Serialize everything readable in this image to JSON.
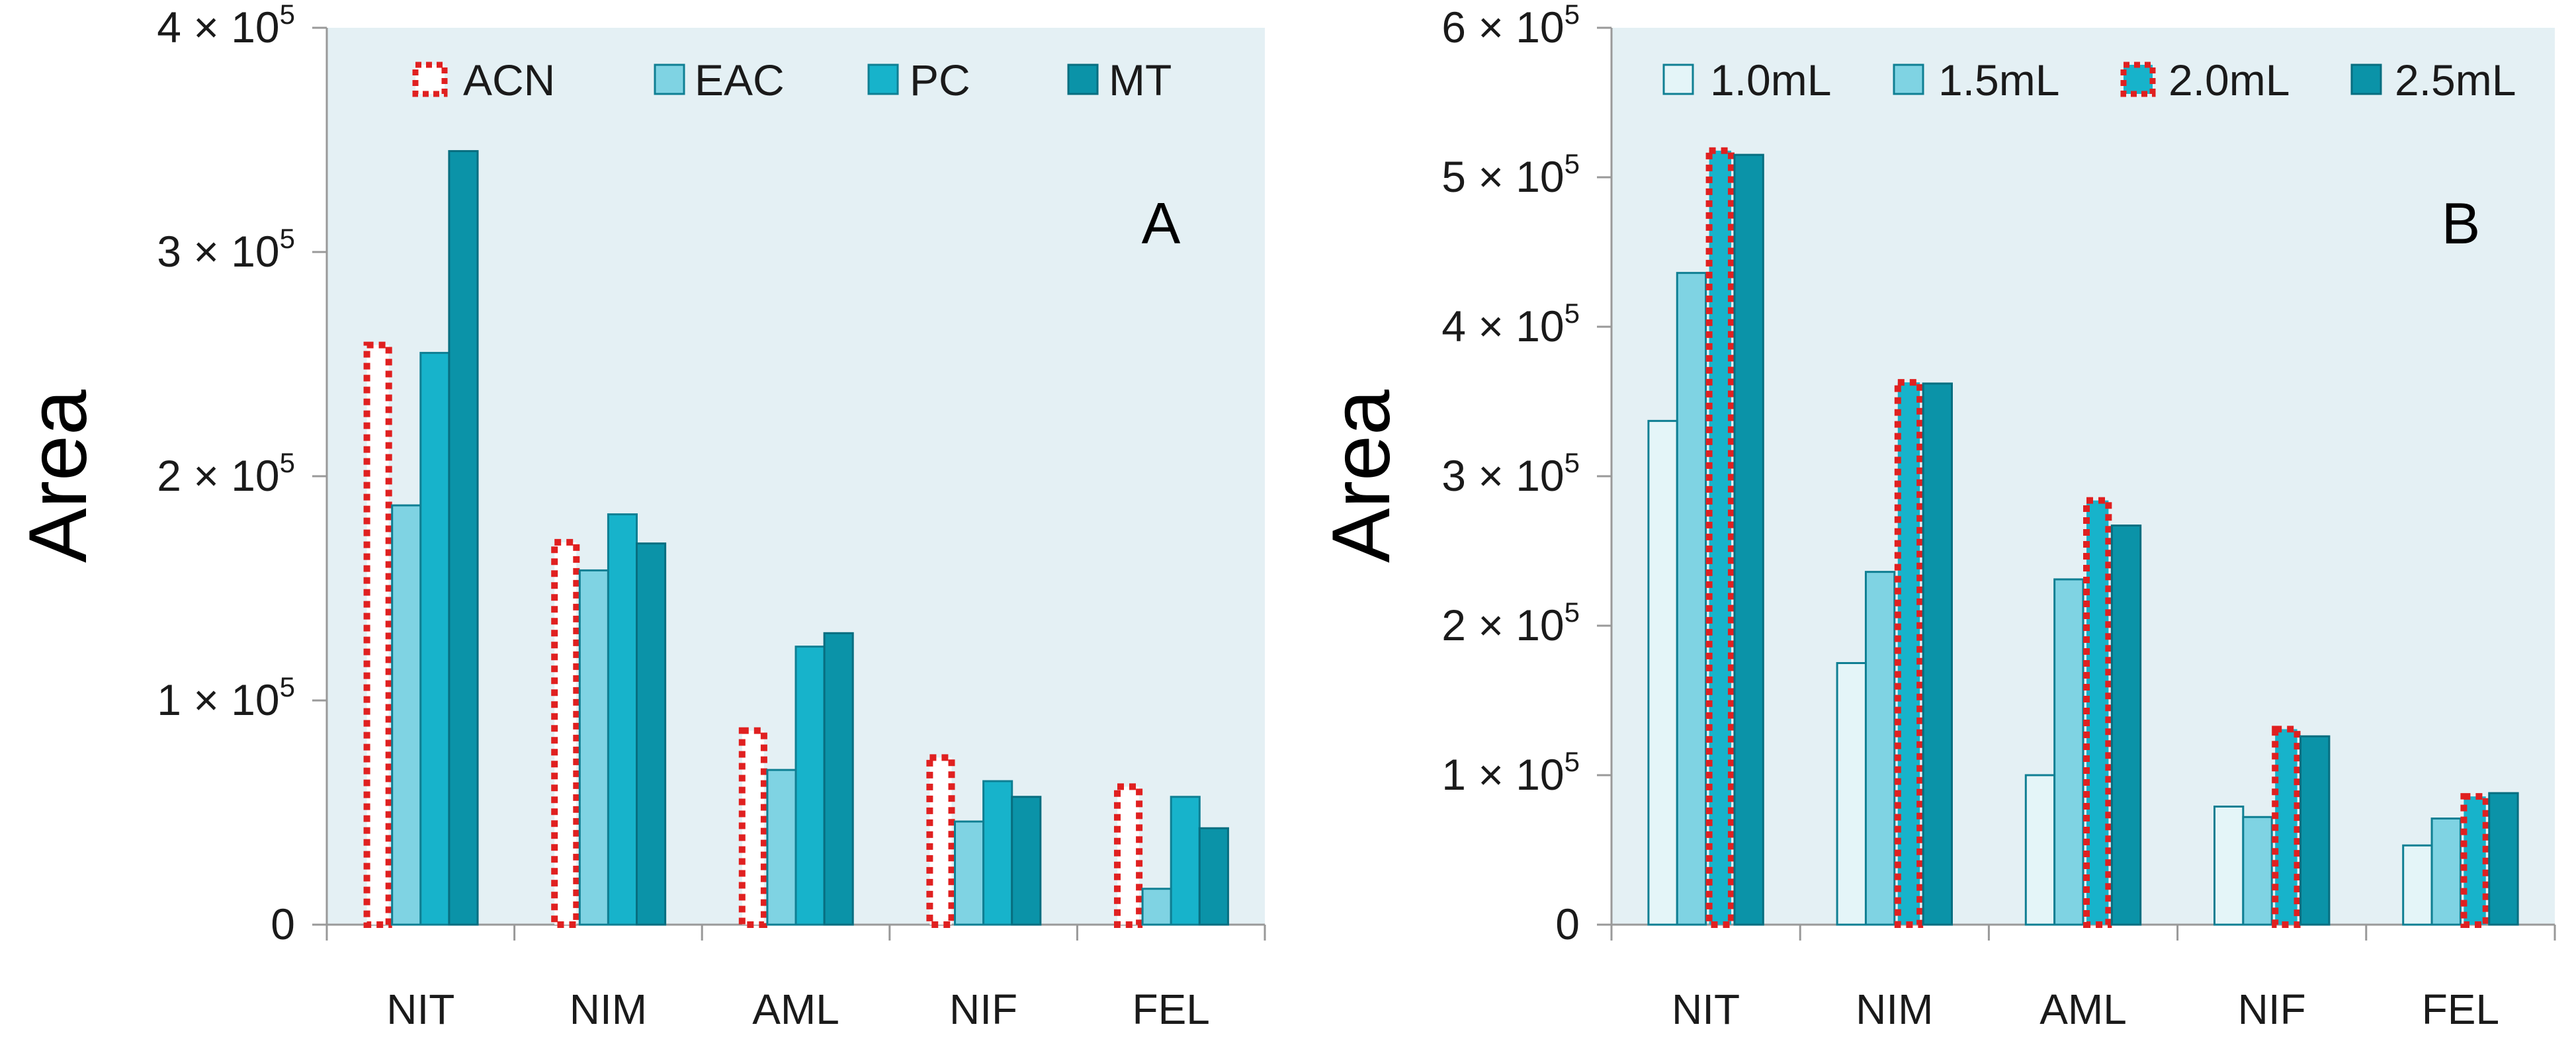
{
  "chart_data": [
    {
      "type": "bar",
      "panel_label": "A",
      "ylabel": "Area",
      "categories": [
        "NIT",
        "NIM",
        "AML",
        "NIF",
        "FEL"
      ],
      "ylim": [
        0,
        400000
      ],
      "yticks": [
        0,
        100000,
        200000,
        300000,
        400000
      ],
      "ytick_labels": [
        {
          "mant": "0",
          "exp": ""
        },
        {
          "mant": "1 × 10",
          "exp": "5"
        },
        {
          "mant": "2 × 10",
          "exp": "5"
        },
        {
          "mant": "3 × 10",
          "exp": "5"
        },
        {
          "mant": "4 × 10",
          "exp": "5"
        }
      ],
      "legend_position": "top",
      "series": [
        {
          "name": "ACN",
          "style": "dotted",
          "fill": "#ffffff",
          "stroke": "#e02020",
          "values": [
            260000,
            172000,
            88000,
            76000,
            63000
          ]
        },
        {
          "name": "EAC",
          "style": "solid",
          "fill": "#7fd3e3",
          "stroke": "#0f7f93",
          "values": [
            187000,
            158000,
            69000,
            46000,
            16000
          ]
        },
        {
          "name": "PC",
          "style": "solid",
          "fill": "#17b3cb",
          "stroke": "#0f7f93",
          "values": [
            255000,
            183000,
            124000,
            64000,
            57000
          ]
        },
        {
          "name": "MT",
          "style": "solid",
          "fill": "#0b93a8",
          "stroke": "#086e80",
          "values": [
            345000,
            170000,
            130000,
            57000,
            43000
          ]
        }
      ]
    },
    {
      "type": "bar",
      "panel_label": "B",
      "ylabel": "Area",
      "categories": [
        "NIT",
        "NIM",
        "AML",
        "NIF",
        "FEL"
      ],
      "ylim": [
        0,
        600000
      ],
      "yticks": [
        0,
        100000,
        200000,
        300000,
        400000,
        500000,
        600000
      ],
      "ytick_labels": [
        {
          "mant": "0",
          "exp": ""
        },
        {
          "mant": "1 × 10",
          "exp": "5"
        },
        {
          "mant": "2 × 10",
          "exp": "5"
        },
        {
          "mant": "3 × 10",
          "exp": "5"
        },
        {
          "mant": "4 × 10",
          "exp": "5"
        },
        {
          "mant": "5 × 10",
          "exp": "5"
        },
        {
          "mant": "6 × 10",
          "exp": "5"
        }
      ],
      "legend_position": "top",
      "series": [
        {
          "name": "1.0mL",
          "style": "solid",
          "fill": "#e4f5f8",
          "stroke": "#0f7f93",
          "values": [
            337000,
            175000,
            100000,
            79000,
            53000
          ]
        },
        {
          "name": "1.5mL",
          "style": "solid",
          "fill": "#7fd3e3",
          "stroke": "#0f7f93",
          "values": [
            436000,
            236000,
            231000,
            72000,
            71000
          ]
        },
        {
          "name": "2.0mL",
          "style": "dotted",
          "fill": "#17b3cb",
          "stroke": "#e02020",
          "values": [
            520000,
            365000,
            286000,
            133000,
            88000
          ]
        },
        {
          "name": "2.5mL",
          "style": "solid",
          "fill": "#0b93a8",
          "stroke": "#086e80",
          "values": [
            515000,
            362000,
            267000,
            126000,
            88000
          ]
        }
      ]
    }
  ]
}
